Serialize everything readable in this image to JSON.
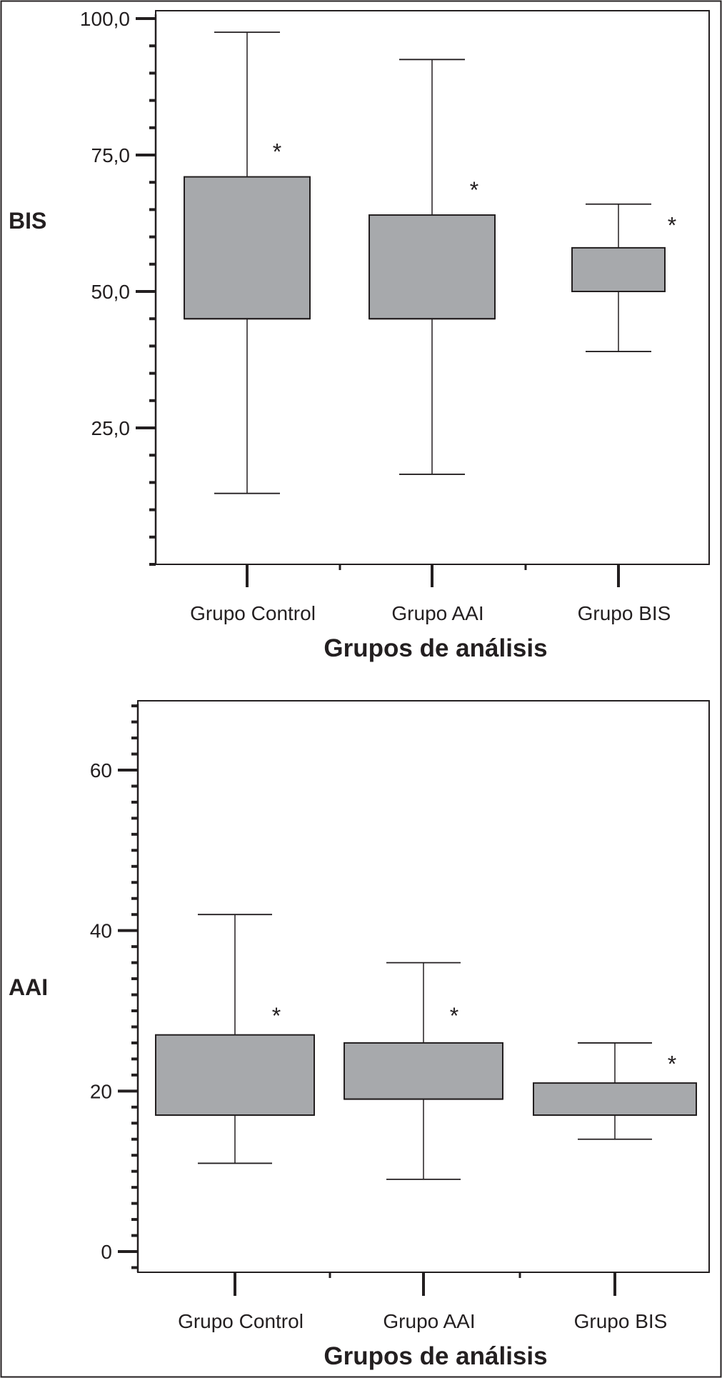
{
  "chart_data": [
    {
      "type": "boxplot",
      "ylabel": "BIS",
      "xlabel": "Grupos de análisis",
      "categories": [
        "Grupo Control",
        "Grupo AAI",
        "Grupo BIS"
      ],
      "yticks": [
        "100,0",
        "75,0",
        "50,0",
        "25,0"
      ],
      "ytick_values": [
        100,
        75,
        50,
        25
      ],
      "ylim": [
        0,
        101.5
      ],
      "minor_tick_step": 5,
      "boxes": [
        {
          "min": 13,
          "q1": 45,
          "median": 45,
          "q3": 71,
          "max": 97.5,
          "marker": "*",
          "marker_value": 76.5
        },
        {
          "min": 16.5,
          "q1": 45,
          "median": 45,
          "q3": 64,
          "max": 92.5,
          "marker": "*",
          "marker_value": 69.5
        },
        {
          "min": 39,
          "q1": 50,
          "median": 50,
          "q3": 58,
          "max": 66,
          "marker": "*",
          "marker_value": 63
        }
      ]
    },
    {
      "type": "boxplot",
      "ylabel": "AAI",
      "xlabel": "Grupos de análisis",
      "categories": [
        "Grupo Control",
        "Grupo AAI",
        "Grupo BIS"
      ],
      "yticks": [
        "60",
        "40",
        "20",
        "0"
      ],
      "ytick_values": [
        60,
        40,
        20,
        0
      ],
      "ylim": [
        -1.5,
        69
      ],
      "minor_tick_step": 2,
      "boxes": [
        {
          "min": 11,
          "q1": 17,
          "median": 17,
          "q3": 27,
          "max": 42,
          "marker": "*",
          "marker_value": 30
        },
        {
          "min": 9,
          "q1": 19,
          "median": 19,
          "q3": 26,
          "max": 36,
          "marker": "*",
          "marker_value": 30
        },
        {
          "min": 14,
          "q1": 17,
          "median": 17,
          "q3": 21,
          "max": 26,
          "marker": "*",
          "marker_value": 24
        }
      ]
    }
  ],
  "colors": {
    "box_fill": "#a7a9ac",
    "line": "#231f20",
    "background": "#ffffff"
  }
}
